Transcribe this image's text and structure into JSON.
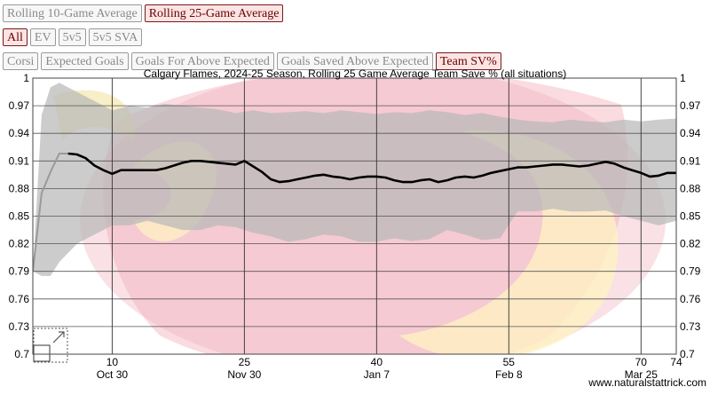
{
  "buttons": {
    "row1": [
      "Rolling 10-Game Average",
      "Rolling 25-Game Average"
    ],
    "row2": [
      "All",
      "EV",
      "5v5",
      "5v5 SVA"
    ],
    "row3": [
      "Corsi",
      "Expected Goals",
      "Goals For Above Expected",
      "Goals Saved Above Expected",
      "Team SV%"
    ],
    "active": [
      "Rolling 25-Game Average",
      "All",
      "Team SV%"
    ]
  },
  "colors": {
    "line": "#000000",
    "line_start": "#9a9a9a",
    "band": "#b8b8b8",
    "band_alt": "#a07080",
    "active_border": "#7a1a1a",
    "active_text": "#6b0000"
  },
  "chart_data": {
    "type": "line",
    "title": "Calgary Flames, 2024-25 Season, Rolling 25 Game Average Team Save % (all situations)",
    "xlabel": "",
    "ylabel": "",
    "xlim": [
      1,
      74
    ],
    "ylim": [
      0.7,
      1.0
    ],
    "y_ticks": [
      "1",
      "0.97",
      "0.94",
      "0.91",
      "0.88",
      "0.85",
      "0.82",
      "0.79",
      "0.76",
      "0.73",
      "0.7"
    ],
    "y_tick_values": [
      1.0,
      0.97,
      0.94,
      0.91,
      0.88,
      0.85,
      0.82,
      0.79,
      0.76,
      0.73,
      0.7
    ],
    "x_ticks": [
      {
        "value": 10,
        "label": "10",
        "date": "Oct 30"
      },
      {
        "value": 25,
        "label": "25",
        "date": "Nov 30"
      },
      {
        "value": 40,
        "label": "40",
        "date": "Jan 7"
      },
      {
        "value": 55,
        "label": "55",
        "date": "Feb 8"
      },
      {
        "value": 70,
        "label": "70",
        "date": "Mar 25"
      },
      {
        "value": 74,
        "label": "74",
        "date": ""
      }
    ],
    "grid": true,
    "watermark": "www.naturalstattrick.com",
    "series": [
      {
        "x": [
          1,
          2,
          3,
          4,
          5,
          6,
          7,
          8,
          9,
          10,
          11,
          12,
          13,
          14,
          15,
          16,
          17,
          18,
          19,
          20,
          21,
          22,
          23,
          24,
          25,
          26,
          27,
          28,
          29,
          30,
          31,
          32,
          33,
          34,
          35,
          36,
          37,
          38,
          39,
          40,
          41,
          42,
          43,
          44,
          45,
          46,
          47,
          48,
          49,
          50,
          51,
          52,
          53,
          54,
          55,
          56,
          57,
          58,
          59,
          60,
          61,
          62,
          63,
          64,
          65,
          66,
          67,
          68,
          69,
          70,
          71,
          72,
          73,
          74
        ],
        "y": [
          0.79,
          0.875,
          0.898,
          0.918,
          0.918,
          0.917,
          0.913,
          0.905,
          0.9,
          0.896,
          0.9,
          0.9,
          0.9,
          0.9,
          0.9,
          0.902,
          0.905,
          0.908,
          0.91,
          0.91,
          0.909,
          0.908,
          0.907,
          0.906,
          0.91,
          0.904,
          0.898,
          0.89,
          0.887,
          0.888,
          0.89,
          0.892,
          0.894,
          0.895,
          0.893,
          0.892,
          0.89,
          0.892,
          0.893,
          0.893,
          0.892,
          0.889,
          0.887,
          0.887,
          0.889,
          0.89,
          0.887,
          0.889,
          0.892,
          0.893,
          0.892,
          0.894,
          0.897,
          0.899,
          0.901,
          0.903,
          0.903,
          0.904,
          0.905,
          0.906,
          0.906,
          0.905,
          0.904,
          0.905,
          0.907,
          0.909,
          0.907,
          0.903,
          0.9,
          0.897,
          0.893,
          0.894,
          0.897,
          0.897
        ]
      }
    ],
    "bands": [
      {
        "x": [
          1,
          2,
          3,
          4,
          5,
          6,
          8,
          10,
          12,
          14,
          16,
          18,
          20,
          22,
          24,
          26,
          28,
          30,
          32,
          34,
          36,
          38,
          40,
          42,
          44,
          46,
          48,
          50,
          52,
          54,
          56,
          58,
          60,
          62,
          64,
          66,
          68,
          70,
          72,
          74
        ],
        "upper": [
          0.79,
          0.96,
          0.99,
          0.995,
          0.99,
          0.985,
          0.975,
          0.965,
          0.97,
          0.968,
          0.972,
          0.97,
          0.968,
          0.966,
          0.962,
          0.965,
          0.962,
          0.963,
          0.964,
          0.962,
          0.965,
          0.963,
          0.961,
          0.963,
          0.962,
          0.965,
          0.963,
          0.96,
          0.962,
          0.958,
          0.955,
          0.953,
          0.952,
          0.955,
          0.953,
          0.952,
          0.955,
          0.953,
          0.955,
          0.956
        ],
        "lower": [
          0.79,
          0.785,
          0.785,
          0.8,
          0.81,
          0.82,
          0.83,
          0.84,
          0.84,
          0.845,
          0.84,
          0.835,
          0.835,
          0.84,
          0.838,
          0.832,
          0.828,
          0.822,
          0.825,
          0.83,
          0.828,
          0.822,
          0.822,
          0.826,
          0.823,
          0.825,
          0.835,
          0.83,
          0.824,
          0.826,
          0.855,
          0.855,
          0.858,
          0.855,
          0.855,
          0.856,
          0.85,
          0.845,
          0.84,
          0.845
        ]
      }
    ]
  }
}
